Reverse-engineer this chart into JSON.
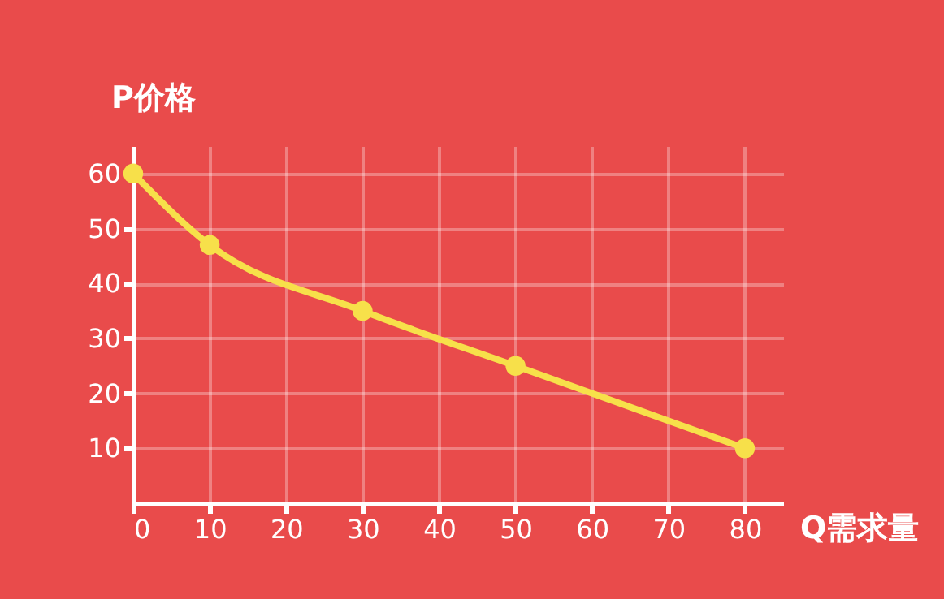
{
  "chart_data": {
    "type": "line",
    "xlabel": "Q需求量",
    "ylabel": "P价格",
    "x": [
      0,
      10,
      30,
      50,
      80
    ],
    "series": [
      {
        "color": "#f7e04a",
        "values": [
          60,
          47,
          35,
          25,
          10
        ]
      }
    ],
    "xlim": [
      0,
      85
    ],
    "ylim": [
      0,
      65
    ],
    "xticks": [
      0,
      10,
      20,
      30,
      40,
      50,
      60,
      70,
      80
    ],
    "yticks": [
      10,
      20,
      30,
      40,
      50,
      60
    ],
    "grid": true,
    "marker": "circle",
    "line_style": "solid"
  }
}
